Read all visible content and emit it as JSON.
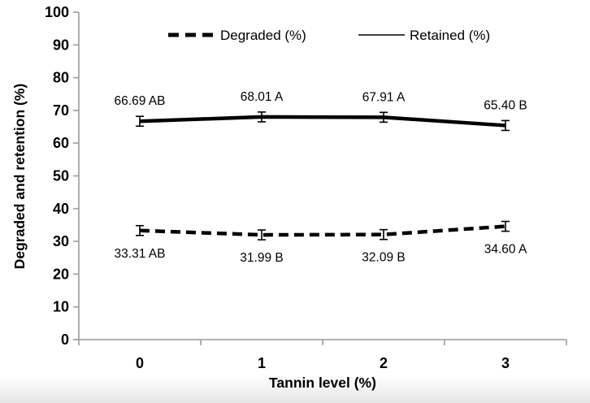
{
  "page": {
    "background": "#ffffff",
    "bottom_fade_color": "#e4e4e4"
  },
  "chart_data": {
    "type": "line",
    "title": "",
    "xlabel": "Tannin level (%)",
    "ylabel": "Degraded and retention (%)",
    "categories": [
      "0",
      "1",
      "2",
      "3"
    ],
    "ylim": [
      0,
      100
    ],
    "ytick_step": 10,
    "yticks": [
      0,
      10,
      20,
      30,
      40,
      50,
      60,
      70,
      80,
      90,
      100
    ],
    "grid": false,
    "legend_position": "top-inside",
    "axis_color": "#a6a6a6",
    "line_color": "#000000",
    "text_color": "#000000",
    "series": [
      {
        "name": "Degraded",
        "legend_label": "Degraded (%)",
        "style": "dashed",
        "values": [
          33.31,
          31.99,
          32.09,
          34.6
        ],
        "point_labels": [
          "33.31 AB",
          "31.99 B",
          "32.09 B",
          "34.60 A"
        ],
        "error": 1.5,
        "label_position": "below"
      },
      {
        "name": "Retained",
        "legend_label": "Retained (%)",
        "style": "solid",
        "values": [
          66.69,
          68.01,
          67.91,
          65.4
        ],
        "point_labels": [
          "66.69 AB",
          "68.01 A",
          "67.91 A",
          "65.40 B"
        ],
        "error": 1.5,
        "label_position": "above"
      }
    ]
  }
}
